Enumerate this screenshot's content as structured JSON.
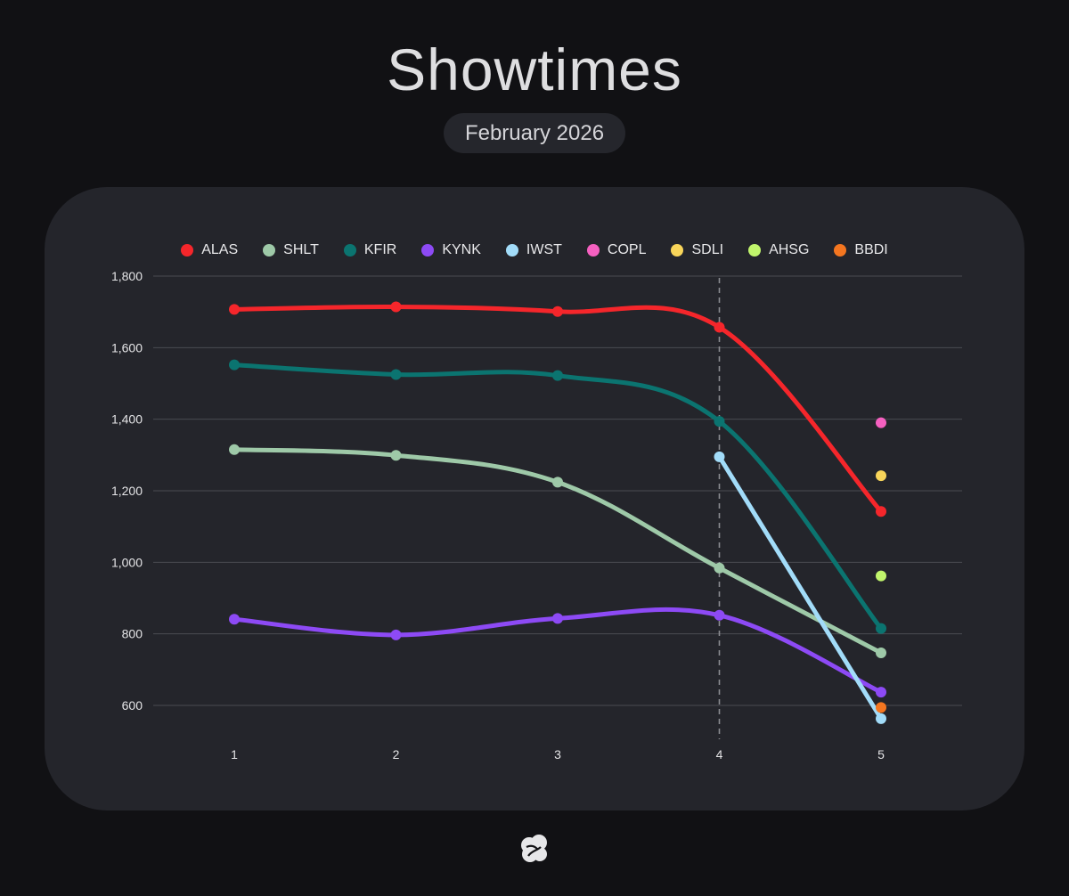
{
  "title": "Showtimes",
  "subtitle": "February 2026",
  "chart_data": {
    "type": "line",
    "x": [
      1,
      2,
      3,
      4,
      5
    ],
    "xticks": [
      "1",
      "2",
      "3",
      "4",
      "5"
    ],
    "ylim": [
      500,
      1800
    ],
    "yticks": [
      600,
      800,
      1000,
      1200,
      1400,
      1600,
      1800
    ],
    "ytick_labels": [
      "600",
      "800",
      "1,000",
      "1,200",
      "1,400",
      "1,600",
      "1,800"
    ],
    "grid": true,
    "legend_position": "top-center",
    "highlight_x": 4,
    "series": [
      {
        "name": "ALAS",
        "color": "#f5262b",
        "values": [
          1707,
          1714,
          1701,
          1657,
          1142
        ]
      },
      {
        "name": "SHLT",
        "color": "#9ec9a8",
        "values": [
          1315,
          1299,
          1224,
          984,
          747
        ]
      },
      {
        "name": "KFIR",
        "color": "#0b7470",
        "values": [
          1552,
          1525,
          1522,
          1394,
          815
        ]
      },
      {
        "name": "KYNK",
        "color": "#8d4af5",
        "values": [
          841,
          797,
          843,
          852,
          637
        ]
      },
      {
        "name": "IWST",
        "color": "#a2dcf9",
        "values": [
          null,
          null,
          null,
          1295,
          563
        ]
      },
      {
        "name": "COPL",
        "color": "#f560c0",
        "values": [
          null,
          null,
          null,
          null,
          1390
        ]
      },
      {
        "name": "SDLI",
        "color": "#f8d55a",
        "values": [
          null,
          null,
          null,
          null,
          1242
        ]
      },
      {
        "name": "AHSG",
        "color": "#c1f56c",
        "values": [
          null,
          null,
          null,
          null,
          962
        ]
      },
      {
        "name": "BBDI",
        "color": "#f47620",
        "values": [
          null,
          null,
          null,
          null,
          594
        ]
      }
    ]
  }
}
